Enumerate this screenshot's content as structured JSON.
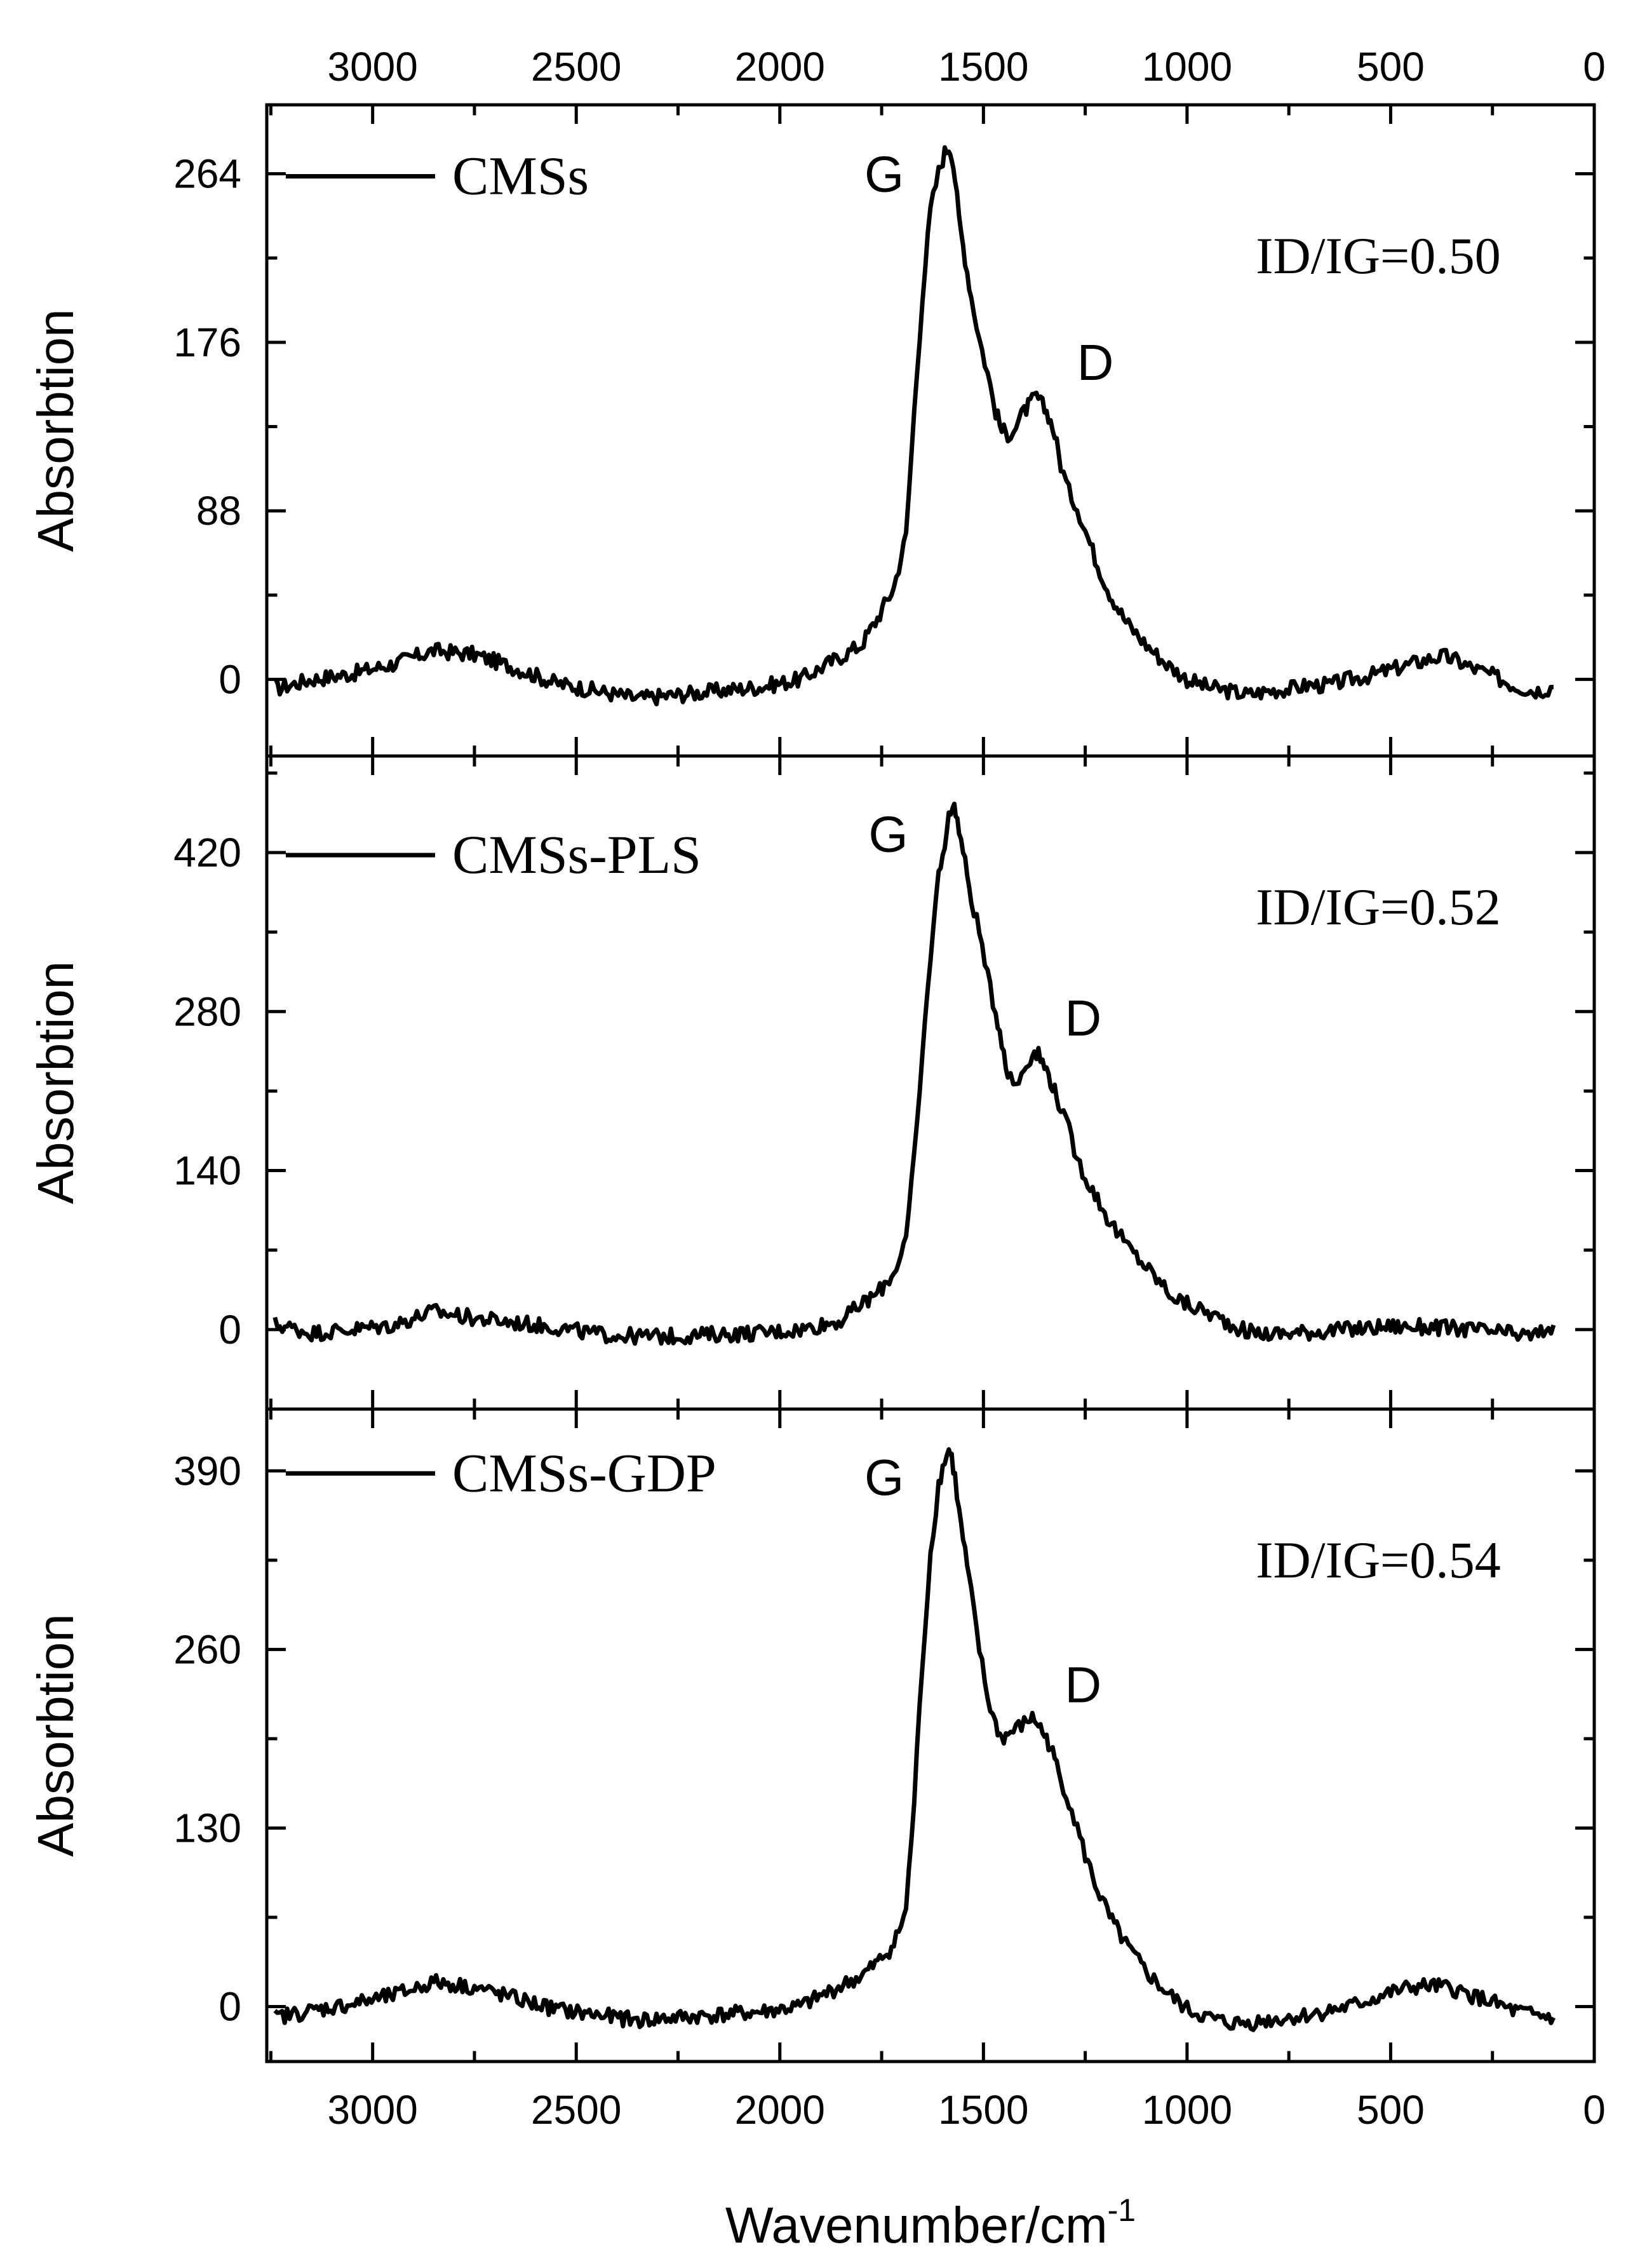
{
  "chart_data": [
    {
      "type": "line",
      "panel": "top",
      "series": [
        {
          "name": "CMSs",
          "style": "solid black"
        }
      ],
      "xlabel": "Wavenumber/cm",
      "xlabel_superscript": "-1",
      "ylabel": "Absorbtion",
      "xlim": [
        3260,
        0
      ],
      "ylim": [
        -40,
        300
      ],
      "xticks": [
        3000,
        2500,
        2000,
        1500,
        1000,
        500,
        0
      ],
      "yticks": [
        0,
        88,
        176,
        264
      ],
      "peaks": [
        {
          "label": "G",
          "x": 1580,
          "y": 278
        },
        {
          "label": "D",
          "x": 1350,
          "y": 148
        }
      ],
      "annotation": "ID/IG=0.50",
      "curve": {
        "x": [
          3240,
          3150,
          3050,
          2950,
          2850,
          2750,
          2650,
          2550,
          2450,
          2350,
          2250,
          2150,
          2050,
          1950,
          1850,
          1800,
          1760,
          1720,
          1690,
          1670,
          1650,
          1630,
          1610,
          1595,
          1585,
          1578,
          1570,
          1560,
          1545,
          1530,
          1510,
          1490,
          1470,
          1455,
          1440,
          1420,
          1400,
          1385,
          1370,
          1355,
          1340,
          1325,
          1310,
          1290,
          1270,
          1250,
          1220,
          1190,
          1150,
          1100,
          1050,
          1000,
          950,
          900,
          850,
          800,
          750,
          700,
          650,
          600,
          550,
          500,
          450,
          400,
          370,
          340,
          300,
          250,
          200,
          150,
          120,
          100
        ],
        "y": [
          -5,
          0,
          3,
          8,
          15,
          13,
          6,
          -2,
          -6,
          -10,
          -8,
          -6,
          -4,
          0,
          12,
          18,
          32,
          48,
          75,
          140,
          200,
          245,
          265,
          275,
          278,
          275,
          262,
          240,
          220,
          200,
          178,
          160,
          140,
          130,
          128,
          132,
          140,
          144,
          148,
          143,
          138,
          128,
          112,
          98,
          90,
          78,
          60,
          45,
          30,
          18,
          8,
          0,
          -4,
          -6,
          -8,
          -6,
          -5,
          -3,
          -3,
          0,
          2,
          5,
          8,
          11,
          12,
          10,
          6,
          2,
          -3,
          -6,
          -5,
          -4
        ]
      }
    },
    {
      "type": "line",
      "panel": "middle",
      "series": [
        {
          "name": "CMSs-PLS",
          "style": "solid black"
        }
      ],
      "xlabel": "Wavenumber/cm",
      "xlabel_superscript": "-1",
      "ylabel": "Absorbtion",
      "xlim": [
        3260,
        0
      ],
      "ylim": [
        -70,
        505
      ],
      "xticks": [
        3000,
        2500,
        2000,
        1500,
        1000,
        500,
        0
      ],
      "yticks": [
        0,
        140,
        280,
        420
      ],
      "peaks": [
        {
          "label": "G",
          "x": 1570,
          "y": 460
        },
        {
          "label": "D",
          "x": 1380,
          "y": 245
        }
      ],
      "annotation": "ID/IG=0.52",
      "curve": {
        "x": [
          3240,
          3150,
          3050,
          2950,
          2850,
          2750,
          2650,
          2550,
          2450,
          2350,
          2250,
          2150,
          2050,
          1950,
          1850,
          1800,
          1760,
          1720,
          1690,
          1670,
          1650,
          1630,
          1610,
          1595,
          1585,
          1575,
          1568,
          1560,
          1545,
          1530,
          1510,
          1490,
          1470,
          1455,
          1440,
          1420,
          1400,
          1385,
          1370,
          1355,
          1340,
          1325,
          1310,
          1290,
          1270,
          1250,
          1220,
          1190,
          1150,
          1100,
          1050,
          1030,
          1000,
          950,
          900,
          850,
          800,
          700,
          600,
          500,
          400,
          300,
          200,
          150,
          100
        ],
        "y": [
          5,
          -3,
          0,
          4,
          16,
          10,
          6,
          2,
          -4,
          -6,
          -6,
          -4,
          -3,
          0,
          8,
          22,
          32,
          50,
          80,
          150,
          240,
          330,
          400,
          430,
          450,
          462,
          458,
          440,
          410,
          380,
          350,
          310,
          280,
          255,
          225,
          215,
          230,
          240,
          245,
          235,
          225,
          210,
          195,
          175,
          150,
          135,
          115,
          95,
          75,
          55,
          35,
          28,
          22,
          15,
          6,
          -2,
          -4,
          -2,
          0,
          3,
          2,
          0,
          -4,
          -6,
          4
        ]
      }
    },
    {
      "type": "line",
      "panel": "bottom",
      "series": [
        {
          "name": "CMSs-GDP",
          "style": "solid black"
        }
      ],
      "xlabel": "Wavenumber/cm",
      "xlabel_superscript": "-1",
      "ylabel": "Absorbtion",
      "xlim": [
        3260,
        0
      ],
      "ylim": [
        -40,
        435
      ],
      "xticks": [
        3000,
        2500,
        2000,
        1500,
        1000,
        500,
        0
      ],
      "yticks": [
        0,
        130,
        260,
        390
      ],
      "peaks": [
        {
          "label": "G",
          "x": 1580,
          "y": 405
        },
        {
          "label": "D",
          "x": 1380,
          "y": 210
        }
      ],
      "annotation": "ID/IG=0.54",
      "curve": {
        "x": [
          3240,
          3150,
          3050,
          2950,
          2850,
          2750,
          2650,
          2550,
          2450,
          2350,
          2250,
          2150,
          2050,
          1950,
          1850,
          1800,
          1760,
          1720,
          1690,
          1670,
          1650,
          1630,
          1610,
          1595,
          1585,
          1578,
          1570,
          1560,
          1545,
          1530,
          1510,
          1490,
          1470,
          1455,
          1440,
          1420,
          1400,
          1385,
          1370,
          1355,
          1340,
          1325,
          1310,
          1290,
          1270,
          1250,
          1220,
          1190,
          1150,
          1100,
          1050,
          1000,
          950,
          900,
          850,
          800,
          750,
          700,
          650,
          600,
          550,
          500,
          450,
          400,
          370,
          340,
          300,
          250,
          200,
          150,
          100
        ],
        "y": [
          -8,
          -3,
          2,
          8,
          18,
          14,
          6,
          -2,
          -6,
          -10,
          -8,
          -6,
          -4,
          0,
          15,
          22,
          32,
          45,
          70,
          150,
          250,
          330,
          380,
          398,
          405,
          400,
          385,
          360,
          330,
          300,
          260,
          225,
          205,
          195,
          198,
          202,
          206,
          210,
          208,
          200,
          192,
          180,
          165,
          150,
          130,
          110,
          85,
          65,
          45,
          25,
          10,
          -2,
          -8,
          -12,
          -12,
          -10,
          -8,
          -6,
          -3,
          0,
          5,
          10,
          14,
          15,
          14,
          12,
          8,
          3,
          -3,
          -6,
          -8
        ]
      }
    }
  ]
}
